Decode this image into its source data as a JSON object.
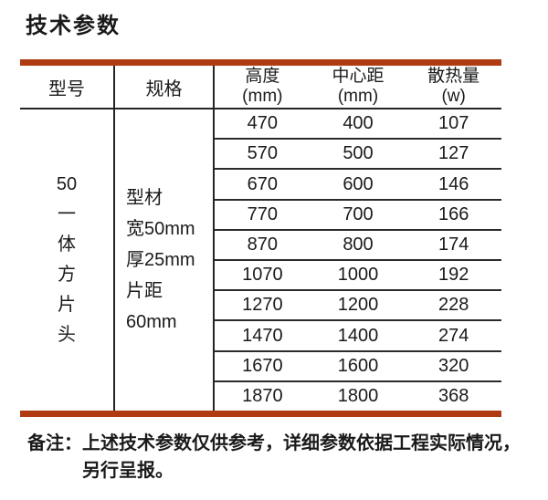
{
  "page": {
    "title": "技术参数"
  },
  "table": {
    "accent_color": "#b03a12",
    "col_headers": {
      "model": "型号",
      "spec": "规格"
    },
    "measure_headers": [
      "高度\n(mm)",
      "中心距\n(mm)",
      "散热量\n(w)"
    ],
    "model_value": "50\n一\n体\n方\n片\n头",
    "spec_value": "型材\n宽50mm\n厚25mm\n片距\n60mm",
    "rows": [
      [
        "470",
        "400",
        "107"
      ],
      [
        "570",
        "500",
        "127"
      ],
      [
        "670",
        "600",
        "146"
      ],
      [
        "770",
        "700",
        "166"
      ],
      [
        "870",
        "800",
        "174"
      ],
      [
        "1070",
        "1000",
        "192"
      ],
      [
        "1270",
        "1200",
        "228"
      ],
      [
        "1470",
        "1400",
        "274"
      ],
      [
        "1670",
        "1600",
        "320"
      ],
      [
        "1870",
        "1800",
        "368"
      ]
    ]
  },
  "note": {
    "label": "备注：",
    "line1": "上述技术参数仅供参考，详细参数依据工程实际情况，",
    "line2": "另行呈报。"
  }
}
